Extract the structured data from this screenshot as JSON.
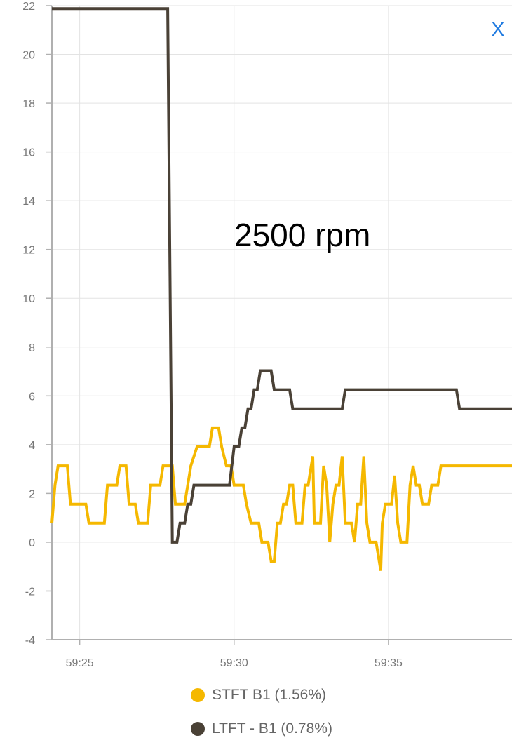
{
  "close_label": "X",
  "annotation": "2500 rpm",
  "legend": [
    {
      "label": "STFT B1 (1.56%)",
      "color": "#f5b800"
    },
    {
      "label": "LTFT - B1 (0.78%)",
      "color": "#4a4136"
    }
  ],
  "chart_data": {
    "type": "line",
    "title": "",
    "xlabel": "",
    "ylabel": "",
    "ylim": [
      -4,
      22
    ],
    "yticks": [
      -4,
      -2,
      0,
      2,
      4,
      6,
      8,
      10,
      12,
      14,
      16,
      18,
      20,
      22
    ],
    "xlim_seconds": [
      24.1,
      39.0
    ],
    "xticks": [
      {
        "label": "59:25",
        "t": 25
      },
      {
        "label": "59:30",
        "t": 30
      },
      {
        "label": "59:35",
        "t": 35
      }
    ],
    "x_unit": "seconds past 59:00",
    "grid": true,
    "series": [
      {
        "name": "STFT B1 (1.56%)",
        "color": "#f5b800",
        "points": [
          [
            24.1,
            0.78
          ],
          [
            24.2,
            2.34
          ],
          [
            24.3,
            3.13
          ],
          [
            24.6,
            3.13
          ],
          [
            24.7,
            1.56
          ],
          [
            25.2,
            1.56
          ],
          [
            25.3,
            0.78
          ],
          [
            25.8,
            0.78
          ],
          [
            25.9,
            2.34
          ],
          [
            26.2,
            2.34
          ],
          [
            26.3,
            3.13
          ],
          [
            26.5,
            3.13
          ],
          [
            26.6,
            1.56
          ],
          [
            26.8,
            1.56
          ],
          [
            26.9,
            0.78
          ],
          [
            27.2,
            0.78
          ],
          [
            27.3,
            2.34
          ],
          [
            27.6,
            2.34
          ],
          [
            27.7,
            3.13
          ],
          [
            28.0,
            3.13
          ],
          [
            28.1,
            1.56
          ],
          [
            28.4,
            1.56
          ],
          [
            28.6,
            3.13
          ],
          [
            28.8,
            3.91
          ],
          [
            29.2,
            3.91
          ],
          [
            29.3,
            4.69
          ],
          [
            29.5,
            4.69
          ],
          [
            29.6,
            3.91
          ],
          [
            29.75,
            3.13
          ],
          [
            29.9,
            3.13
          ],
          [
            30.0,
            2.34
          ],
          [
            30.3,
            2.34
          ],
          [
            30.4,
            1.56
          ],
          [
            30.55,
            0.78
          ],
          [
            30.8,
            0.78
          ],
          [
            30.9,
            0.0
          ],
          [
            31.1,
            0.0
          ],
          [
            31.2,
            -0.78
          ],
          [
            31.3,
            -0.78
          ],
          [
            31.4,
            0.78
          ],
          [
            31.5,
            0.78
          ],
          [
            31.6,
            1.56
          ],
          [
            31.7,
            1.56
          ],
          [
            31.8,
            2.34
          ],
          [
            31.9,
            2.34
          ],
          [
            32.0,
            0.78
          ],
          [
            32.2,
            0.78
          ],
          [
            32.3,
            2.34
          ],
          [
            32.4,
            2.34
          ],
          [
            32.55,
            3.52
          ],
          [
            32.6,
            0.78
          ],
          [
            32.8,
            0.78
          ],
          [
            32.9,
            3.13
          ],
          [
            33.0,
            2.34
          ],
          [
            33.1,
            0.0
          ],
          [
            33.2,
            1.56
          ],
          [
            33.3,
            2.34
          ],
          [
            33.4,
            2.34
          ],
          [
            33.5,
            3.52
          ],
          [
            33.6,
            0.78
          ],
          [
            33.8,
            0.78
          ],
          [
            33.9,
            0.0
          ],
          [
            34.0,
            1.56
          ],
          [
            34.1,
            1.56
          ],
          [
            34.2,
            3.52
          ],
          [
            34.3,
            0.78
          ],
          [
            34.4,
            0.0
          ],
          [
            34.6,
            0.0
          ],
          [
            34.75,
            -1.17
          ],
          [
            34.8,
            0.78
          ],
          [
            34.9,
            1.56
          ],
          [
            35.1,
            1.56
          ],
          [
            35.2,
            2.73
          ],
          [
            35.3,
            0.78
          ],
          [
            35.4,
            0.0
          ],
          [
            35.6,
            0.0
          ],
          [
            35.7,
            2.34
          ],
          [
            35.8,
            3.13
          ],
          [
            35.9,
            2.34
          ],
          [
            36.0,
            2.34
          ],
          [
            36.1,
            1.56
          ],
          [
            36.3,
            1.56
          ],
          [
            36.4,
            2.34
          ],
          [
            36.6,
            2.34
          ],
          [
            36.7,
            3.13
          ],
          [
            39.0,
            3.13
          ]
        ]
      },
      {
        "name": "LTFT - B1 (0.78%)",
        "color": "#4a4136",
        "points": [
          [
            24.1,
            21.88
          ],
          [
            27.85,
            21.88
          ],
          [
            28.0,
            0.0
          ],
          [
            28.15,
            0.0
          ],
          [
            28.25,
            0.78
          ],
          [
            28.4,
            0.78
          ],
          [
            28.5,
            1.56
          ],
          [
            28.6,
            1.56
          ],
          [
            28.7,
            2.34
          ],
          [
            29.85,
            2.34
          ],
          [
            30.0,
            3.91
          ],
          [
            30.15,
            3.91
          ],
          [
            30.25,
            4.69
          ],
          [
            30.35,
            4.69
          ],
          [
            30.45,
            5.47
          ],
          [
            30.55,
            5.47
          ],
          [
            30.65,
            6.25
          ],
          [
            30.75,
            6.25
          ],
          [
            30.85,
            7.03
          ],
          [
            31.2,
            7.03
          ],
          [
            31.3,
            6.25
          ],
          [
            31.8,
            6.25
          ],
          [
            31.9,
            5.47
          ],
          [
            32.9,
            5.47
          ],
          [
            33.5,
            5.47
          ],
          [
            33.6,
            6.25
          ],
          [
            37.2,
            6.25
          ],
          [
            37.3,
            5.47
          ],
          [
            39.0,
            5.47
          ]
        ]
      }
    ]
  }
}
